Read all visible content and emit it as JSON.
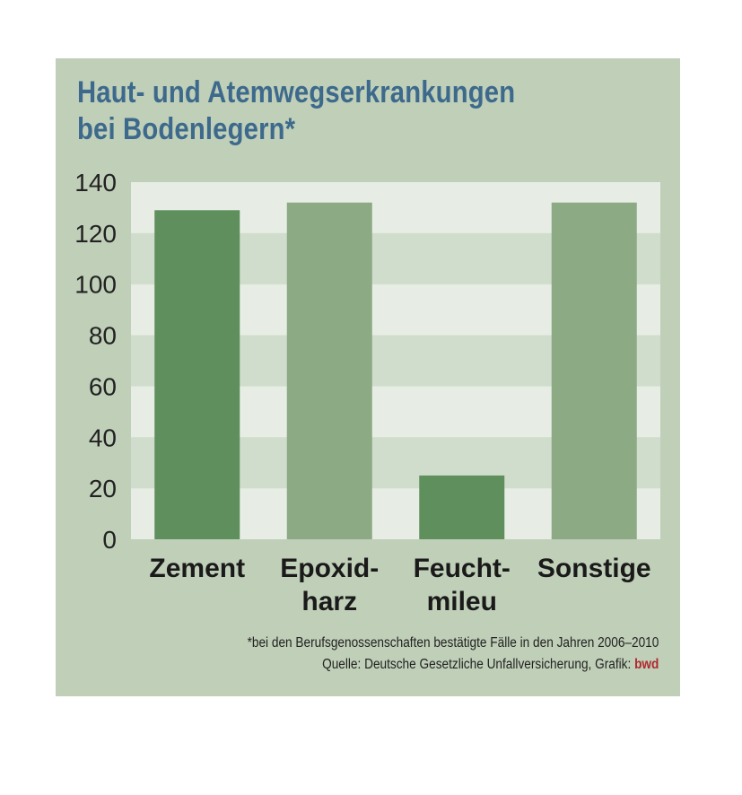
{
  "title_lines": [
    "Haut- und Atemwegserkrankungen",
    "bei Bodenlegern*"
  ],
  "footnote": "*bei den Berufsgenossenschaften bestätigte Fälle in den Jahren 2006–2010",
  "source_prefix": "Quelle: Deutsche Gesetzliche Unfallversicherung, Grafik: ",
  "source_brand": "bwd",
  "colors": {
    "background": "#c0cfb8",
    "band_light": "#e7ede4",
    "band_dark": "#d0ddcc",
    "bar_dark": "#5f8f5c",
    "bar_light": "#8caa84",
    "title": "#3d6a8c",
    "brand": "#b0282e"
  },
  "chart_data": {
    "type": "bar",
    "categories": [
      [
        "Zement"
      ],
      [
        "Epoxid-",
        "harz"
      ],
      [
        "Feucht-",
        "mileu"
      ],
      [
        "Sonstige"
      ]
    ],
    "values": [
      129,
      132,
      25,
      132
    ],
    "bar_colors": [
      "#5f8f5c",
      "#8caa84",
      "#5f8f5c",
      "#8caa84"
    ],
    "ylim": [
      0,
      140
    ],
    "yticks": [
      0,
      20,
      40,
      60,
      80,
      100,
      120,
      140
    ],
    "grid": "alternating horizontal bands",
    "xlabel": "",
    "ylabel": ""
  }
}
